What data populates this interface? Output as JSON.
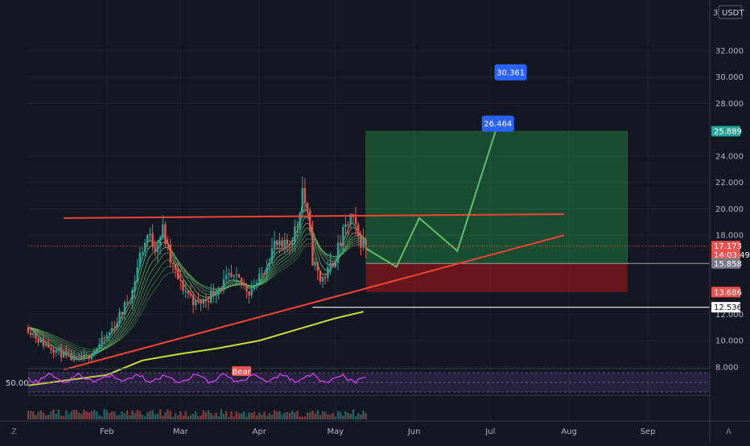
{
  "currency": "USDT",
  "top_tick": "3",
  "price_axis": {
    "ticks": [
      {
        "label": "32.000",
        "value": 32
      },
      {
        "label": "30.000",
        "value": 30
      },
      {
        "label": "28.000",
        "value": 28
      },
      {
        "label": "24.000",
        "value": 24
      },
      {
        "label": "22.000",
        "value": 22
      },
      {
        "label": "20.000",
        "value": 20
      },
      {
        "label": "18.000",
        "value": 18
      },
      {
        "label": "12.000",
        "value": 12
      },
      {
        "label": "10.000",
        "value": 10
      },
      {
        "label": "8.000",
        "value": 8
      }
    ]
  },
  "price_badges": [
    {
      "label": "25.889",
      "value": 25.889,
      "color": "#26a69a"
    },
    {
      "label": "17.173",
      "sub": "14:03:49",
      "value": 17.173,
      "color": "#ef5350"
    },
    {
      "label": "15.858",
      "value": 15.858,
      "color": "#787b86"
    },
    {
      "label": "13.686",
      "value": 13.686,
      "color": "#ef5350"
    },
    {
      "label": "12.536",
      "value": 12.536,
      "color": "#ffffff"
    }
  ],
  "targets": [
    {
      "label": "30.361",
      "value": 30.361,
      "date": "2020-07-09",
      "color": "#2962ff"
    },
    {
      "label": "26.464",
      "value": 26.464,
      "date": "2020-07-04",
      "color": "#2962ff"
    }
  ],
  "time_axis": {
    "labels": [
      {
        "label": "Feb",
        "date": "2020-02-01"
      },
      {
        "label": "Mar",
        "date": "2020-03-01"
      },
      {
        "label": "Apr",
        "date": "2020-04-01"
      },
      {
        "label": "May",
        "date": "2020-05-01"
      },
      {
        "label": "Jun",
        "date": "2020-06-01"
      },
      {
        "label": "Jul",
        "date": "2020-07-01"
      },
      {
        "label": "Aug",
        "date": "2020-08-01"
      },
      {
        "label": "Sep",
        "date": "2020-09-01"
      }
    ]
  },
  "indicator": {
    "level_label": "50.00",
    "bear_label": "Bear"
  },
  "icons": {
    "left": "Z",
    "right": "A"
  },
  "chart_data": {
    "type": "candlestick",
    "x_axis": "date",
    "y_range": [
      6.5,
      33
    ],
    "resistance": {
      "from": [
        "2020-01-15",
        19.3
      ],
      "to": [
        "2020-07-30",
        19.6
      ],
      "color": "#f44336"
    },
    "support": {
      "from": [
        "2020-01-15",
        7.8
      ],
      "to": [
        "2020-07-30",
        18.0
      ],
      "color": "#f44336"
    },
    "position": {
      "start": "2020-05-13",
      "end": "2020-08-24",
      "entry": 15.858,
      "target": 25.889,
      "stop": 13.686
    },
    "projection": [
      [
        "2020-05-13",
        17.0
      ],
      [
        "2020-05-25",
        15.6
      ],
      [
        "2020-06-03",
        19.3
      ],
      [
        "2020-06-18",
        16.8
      ],
      [
        "2020-07-04",
        26.464
      ]
    ],
    "horizontal_level": {
      "from": "2020-04-22",
      "value": 12.536
    },
    "current_price": 17.173,
    "ma200": [
      [
        "2020-01-01",
        6.6
      ],
      [
        "2020-02-01",
        7.4
      ],
      [
        "2020-02-15",
        8.5
      ],
      [
        "2020-03-01",
        9.0
      ],
      [
        "2020-03-15",
        9.4
      ],
      [
        "2020-04-01",
        10.0
      ],
      [
        "2020-04-15",
        10.8
      ],
      [
        "2020-05-01",
        11.7
      ],
      [
        "2020-05-12",
        12.2
      ]
    ],
    "close": [
      [
        "2020-01-01",
        11.0
      ],
      [
        "2020-01-06",
        9.9
      ],
      [
        "2020-01-11",
        9.4
      ],
      [
        "2020-01-16",
        8.8
      ],
      [
        "2020-01-20",
        8.5
      ],
      [
        "2020-01-24",
        8.7
      ],
      [
        "2020-01-28",
        9.5
      ],
      [
        "2020-02-01",
        10.3
      ],
      [
        "2020-02-05",
        11.5
      ],
      [
        "2020-02-08",
        12.6
      ],
      [
        "2020-02-11",
        13.8
      ],
      [
        "2020-02-14",
        16.5
      ],
      [
        "2020-02-17",
        18.0
      ],
      [
        "2020-02-20",
        17.2
      ],
      [
        "2020-02-23",
        18.4
      ],
      [
        "2020-02-26",
        16.0
      ],
      [
        "2020-03-01",
        14.2
      ],
      [
        "2020-03-04",
        13.6
      ],
      [
        "2020-03-07",
        12.8
      ],
      [
        "2020-03-10",
        13.0
      ],
      [
        "2020-03-13",
        13.5
      ],
      [
        "2020-03-17",
        14.2
      ],
      [
        "2020-03-20",
        14.7
      ],
      [
        "2020-03-24",
        14.5
      ],
      [
        "2020-03-28",
        13.8
      ],
      [
        "2020-04-01",
        14.6
      ],
      [
        "2020-04-04",
        16.0
      ],
      [
        "2020-04-07",
        17.3
      ],
      [
        "2020-04-10",
        16.9
      ],
      [
        "2020-04-13",
        17.5
      ],
      [
        "2020-04-16",
        18.8
      ],
      [
        "2020-04-18",
        21.6
      ],
      [
        "2020-04-20",
        19.4
      ],
      [
        "2020-04-22",
        16.2
      ],
      [
        "2020-04-25",
        14.6
      ],
      [
        "2020-04-28",
        15.2
      ],
      [
        "2020-05-01",
        16.4
      ],
      [
        "2020-05-04",
        18.0
      ],
      [
        "2020-05-07",
        19.4
      ],
      [
        "2020-05-10",
        17.8
      ],
      [
        "2020-05-13",
        17.17
      ]
    ]
  }
}
